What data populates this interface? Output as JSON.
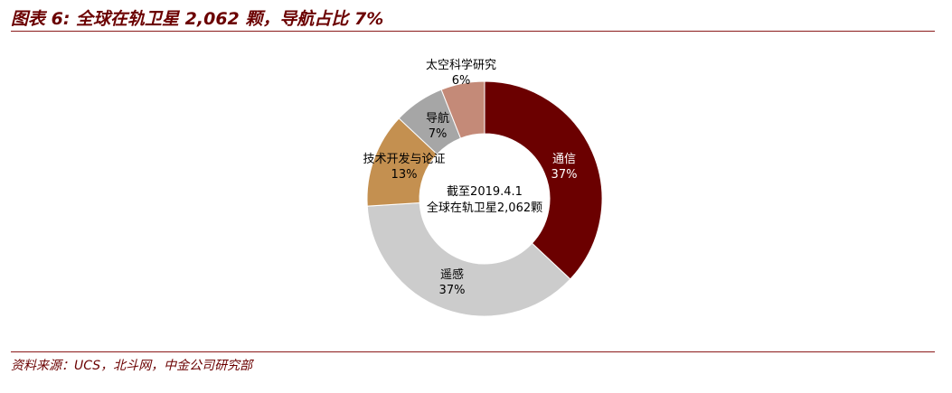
{
  "title": "图表 6:  全球在轨卫星 2,062 颗，导航占比 7%",
  "source": "资料来源：UCS，北斗网，中金公司研究部",
  "colors": {
    "accent": "#6b0000",
    "rule": "#8b1a1a"
  },
  "chart_data": {
    "type": "pie",
    "center_text": [
      "截至2019.4.1",
      "全球在轨卫星2,062颗"
    ],
    "slices": [
      {
        "name": "通信",
        "label": "37%",
        "value": 37,
        "color": "#6b0000"
      },
      {
        "name": "遥感",
        "label": "37%",
        "value": 37,
        "color": "#cccccc"
      },
      {
        "name": "技术开发与论证",
        "label": "13%",
        "value": 13,
        "color": "#c49050"
      },
      {
        "name": "导航",
        "label": "7%",
        "value": 7,
        "color": "#a6a6a6"
      },
      {
        "name": "太空科学研究",
        "label": "6%",
        "value": 6,
        "color": "#c48a78"
      }
    ]
  }
}
